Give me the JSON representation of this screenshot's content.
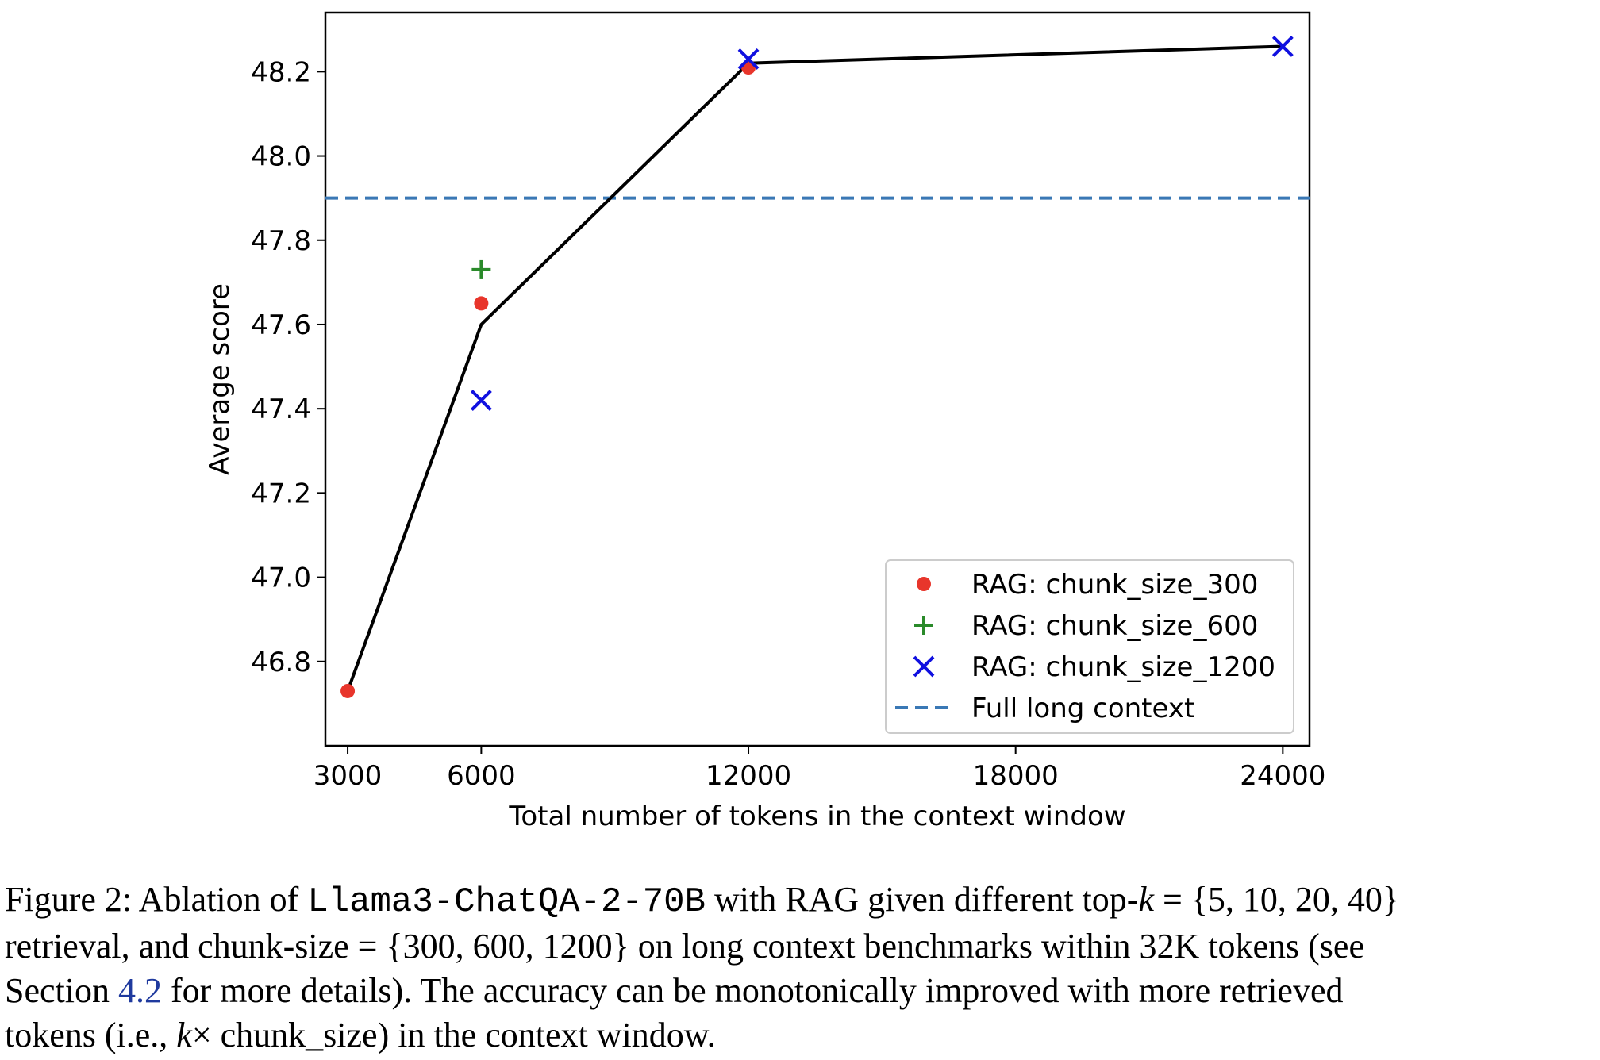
{
  "chart_data": {
    "type": "scatter",
    "title": "",
    "xlabel": "Total number of tokens in the context window",
    "ylabel": "Average score",
    "xlim": [
      2500,
      24600
    ],
    "ylim": [
      46.6,
      48.34
    ],
    "x_ticks": [
      3000,
      6000,
      12000,
      18000,
      24000
    ],
    "x_tick_labels": [
      "3000",
      "6000",
      "12000",
      "18000",
      "24000"
    ],
    "y_ticks": [
      46.8,
      47.0,
      47.2,
      47.4,
      47.6,
      47.8,
      48.0,
      48.2
    ],
    "y_tick_labels": [
      "46.8",
      "47.0",
      "47.2",
      "47.4",
      "47.6",
      "47.8",
      "48.0",
      "48.2"
    ],
    "grid": false,
    "legend_position": "lower-right",
    "series": [
      {
        "name": "RAG: chunk_size_300",
        "marker": "circle",
        "color": "#e8352b",
        "points": [
          {
            "x": 3000,
            "y": 46.73
          },
          {
            "x": 6000,
            "y": 47.65
          },
          {
            "x": 12000,
            "y": 48.21
          }
        ]
      },
      {
        "name": "RAG: chunk_size_600",
        "marker": "plus",
        "color": "#2a8a2a",
        "points": [
          {
            "x": 6000,
            "y": 47.73
          }
        ]
      },
      {
        "name": "RAG: chunk_size_1200",
        "marker": "x",
        "color": "#1010e0",
        "points": [
          {
            "x": 6000,
            "y": 47.42
          },
          {
            "x": 12000,
            "y": 48.23
          },
          {
            "x": 24000,
            "y": 48.26
          }
        ]
      }
    ],
    "trend_line": {
      "color": "#000000",
      "points": [
        {
          "x": 3000,
          "y": 46.73
        },
        {
          "x": 6000,
          "y": 47.6
        },
        {
          "x": 12000,
          "y": 48.22
        },
        {
          "x": 24000,
          "y": 48.26
        }
      ]
    },
    "reference_line": {
      "name": "Full long context",
      "y": 47.9,
      "style": "dashed",
      "color": "#3a78b5"
    }
  },
  "caption": {
    "line1_a": "Figure 2:  Ablation of ",
    "line1_model": "Llama3-ChatQA-2-70B",
    "line1_b": " with RAG given different top-",
    "line1_k": "k",
    "line1_c": " = {5, 10, 20, 40}",
    "line2": "retrieval, and chunk-size = {300, 600, 1200} on long context benchmarks within 32K tokens (see",
    "line3_a": "Section ",
    "line3_ref": "4.2",
    "line3_b": " for more details).  The accuracy can be monotonically improved with more retrieved",
    "line4_a": "tokens (i.e., ",
    "line4_k": "k",
    "line4_b": "× chunk_size) in the context window."
  }
}
